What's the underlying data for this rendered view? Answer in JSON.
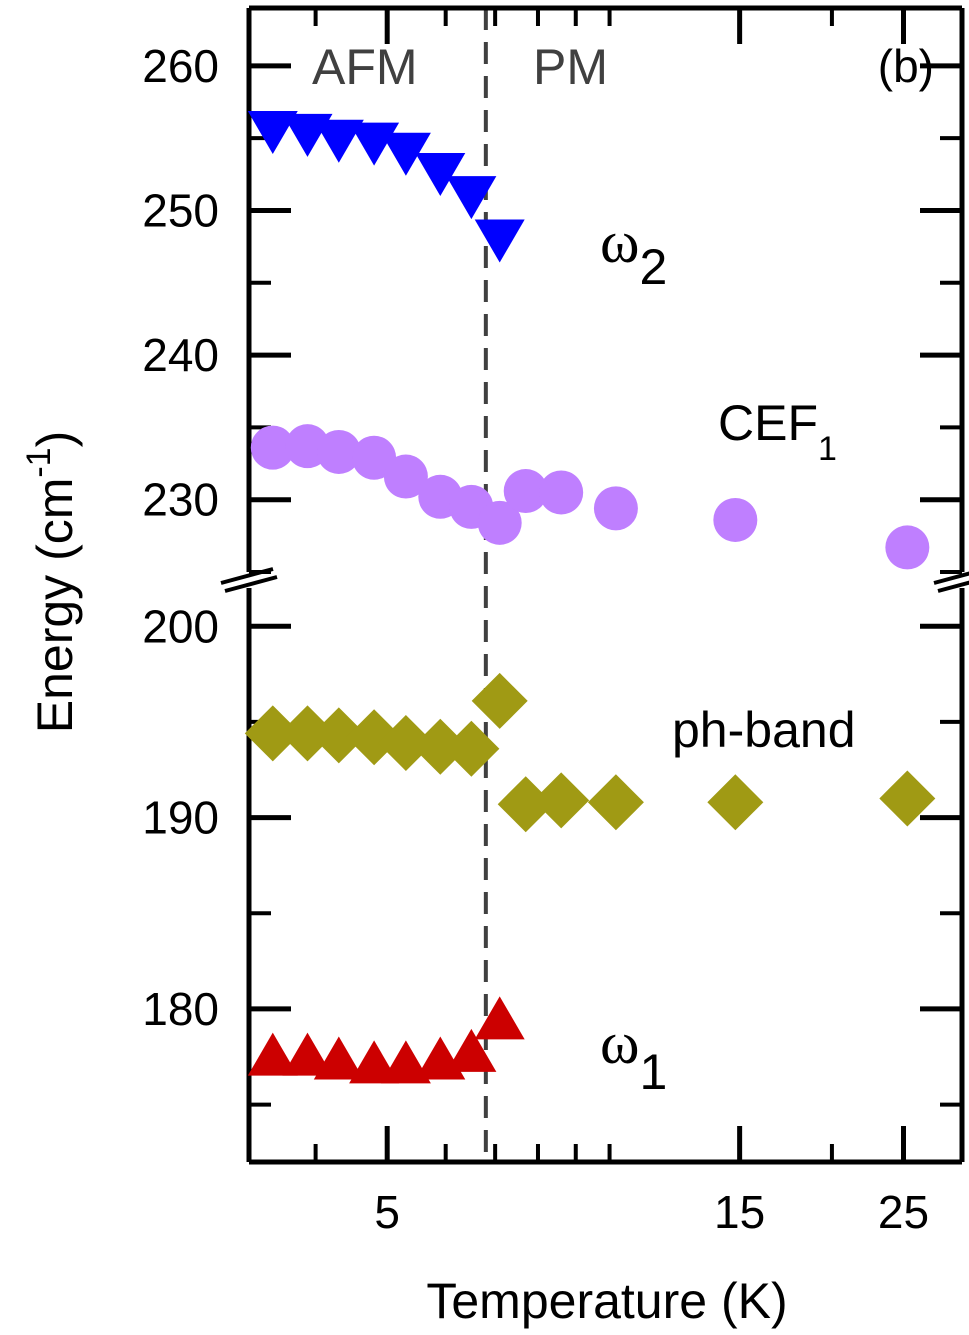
{
  "chart_data": {
    "type": "scatter",
    "panel_label": "(b)",
    "xlabel": "Temperature (K)",
    "ylabel": "Energy (cm⁻¹)",
    "ylabel_parts": {
      "main": "Energy (cm",
      "sup": "-1",
      "close": ")"
    },
    "x_scale": "log",
    "x_ticks": [
      5,
      15,
      25
    ],
    "x_tick_labels": [
      "5",
      "15",
      "25"
    ],
    "xlim": [
      3.25,
      30
    ],
    "y_axis_break": [
      202,
      225
    ],
    "y_lower_range": [
      172,
      202
    ],
    "y_upper_range": [
      225,
      264
    ],
    "y_ticks": [
      180,
      190,
      200,
      230,
      240,
      250,
      260
    ],
    "y_tick_labels": [
      "180",
      "190",
      "200",
      "230",
      "240",
      "250",
      "260"
    ],
    "transition_temperature": 6.8,
    "regions": [
      {
        "label": "AFM",
        "side": "left of transition"
      },
      {
        "label": "PM",
        "side": "right of transition"
      }
    ],
    "series": [
      {
        "name": "ω₂",
        "label_main": "ω",
        "label_sub": "2",
        "marker": "triangle-down",
        "color": "#0000ff",
        "x": [
          3.5,
          3.9,
          4.3,
          4.8,
          5.3,
          5.9,
          6.5,
          7.1
        ],
        "y": [
          255.7,
          255.5,
          255.1,
          254.9,
          254.2,
          252.8,
          251.2,
          248.2
        ]
      },
      {
        "name": "CEF₁",
        "label_main": "CEF",
        "label_sub": "1",
        "marker": "circle",
        "color": "#bf7fff",
        "x": [
          3.5,
          3.9,
          4.3,
          4.8,
          5.3,
          5.9,
          6.5,
          7.1,
          7.7,
          8.6,
          10.2,
          14.8,
          25.3
        ],
        "y": [
          233.6,
          233.7,
          233.3,
          232.9,
          231.6,
          230.2,
          229.5,
          228.4,
          230.6,
          230.5,
          229.4,
          228.6,
          226.7
        ]
      },
      {
        "name": "ph-band",
        "label_main": "ph-band",
        "label_sub": "",
        "marker": "diamond",
        "color": "#a09a14",
        "x": [
          3.5,
          3.9,
          4.3,
          4.8,
          5.3,
          5.9,
          6.5,
          7.1,
          7.7,
          8.6,
          10.2,
          14.8,
          25.3
        ],
        "y": [
          194.4,
          194.4,
          194.3,
          194.2,
          193.9,
          193.7,
          193.6,
          196.1,
          190.7,
          190.9,
          190.8,
          190.8,
          191.0
        ]
      },
      {
        "name": "ω₁",
        "label_main": "ω",
        "label_sub": "1",
        "marker": "triangle-up",
        "color": "#cc0000",
        "x": [
          3.5,
          3.9,
          4.3,
          4.8,
          5.3,
          5.9,
          6.5,
          7.1
        ],
        "y": [
          177.4,
          177.4,
          177.2,
          177.0,
          177.0,
          177.2,
          177.6,
          179.3
        ]
      }
    ]
  }
}
